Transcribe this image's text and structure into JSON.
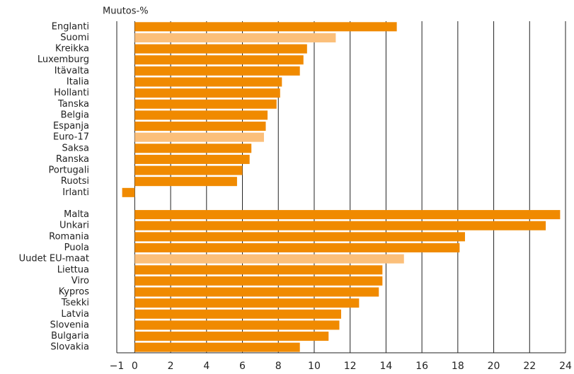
{
  "chart_data": {
    "type": "hbar",
    "axis_label": "Muutos-%",
    "categories": [
      "Englanti",
      "Suomi",
      "Kreikka",
      "Luxemburg",
      "Itävalta",
      "Italia",
      "Hollanti",
      "Tanska",
      "Belgia",
      "Espanja",
      "Euro-17",
      "Saksa",
      "Ranska",
      "Portugali",
      "Ruotsi",
      "Irlanti",
      null,
      "Malta",
      "Unkari",
      "Romania",
      "Puola",
      "Uudet EU-maat",
      "Liettua",
      "Viro",
      "Kypros",
      "Tsekki",
      "Latvia",
      "Slovenia",
      "Bulgaria",
      "Slovakia"
    ],
    "values": [
      14.6,
      11.2,
      9.6,
      9.4,
      9.2,
      8.2,
      8.1,
      7.9,
      7.4,
      7.3,
      7.2,
      6.5,
      6.4,
      6.0,
      5.7,
      -0.7,
      null,
      23.7,
      22.9,
      18.4,
      18.1,
      15.0,
      13.8,
      13.8,
      13.6,
      12.5,
      11.5,
      11.4,
      10.8,
      9.2
    ],
    "colors": [
      "#f08a00",
      "#fbbf7a",
      "#f08a00",
      "#f08a00",
      "#f08a00",
      "#f08a00",
      "#f08a00",
      "#f08a00",
      "#f08a00",
      "#f08a00",
      "#fbbf7a",
      "#f08a00",
      "#f08a00",
      "#f08a00",
      "#f08a00",
      "#f08a00",
      null,
      "#f08a00",
      "#f08a00",
      "#f08a00",
      "#f08a00",
      "#fbbf7a",
      "#f08a00",
      "#f08a00",
      "#f08a00",
      "#f08a00",
      "#f08a00",
      "#f08a00",
      "#f08a00",
      "#f08a00"
    ],
    "xlim": [
      -1,
      24
    ],
    "xticks": [
      {
        "value": -1,
        "label": "−1"
      },
      0,
      2,
      4,
      6,
      8,
      10,
      12,
      14,
      16,
      18,
      20,
      22,
      24
    ],
    "grid": true
  }
}
